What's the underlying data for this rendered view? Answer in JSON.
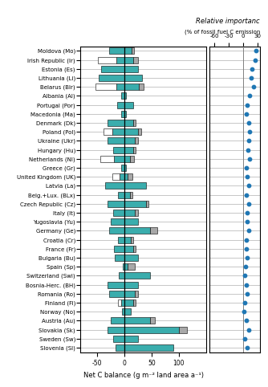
{
  "chart_data": [
    {
      "type": "bar",
      "orientation": "horizontal",
      "stacked": true,
      "grid": true,
      "xlabel": "Net C balance (g m⁻² land area a⁻¹)",
      "categories": [
        "Moldova (Mo)",
        "Irish Republic (Ir)",
        "Estonia (Es)",
        "Lithuania (Li)",
        "Belarus (Blr)",
        "Albania (Al)",
        "Portugal (Por)",
        "Macedonia (Ma)",
        "Denmark (Dk)",
        "Poland (Pol)",
        "Ukraine (Ukr)",
        "Hungary (Hu)",
        "Netherlands (Nl)",
        "Greece (Gr)",
        "United Kingdom (UK)",
        "Latvia (La)",
        "Belg.+Lux. (BLx)",
        "Czech Republic (Cz)",
        "Italy (It)",
        "Yugoslavia (Yu)",
        "Germany (Ge)",
        "Croatia (Cr)",
        "France (Fr)",
        "Bulgaria (Bu)",
        "Spain (Sp)",
        "Switzerland (Swi)",
        "Bosnia-Herc. (BH)",
        "Romania (Ro)",
        "Finland (Fi)",
        "Norway (No)",
        "Austria (Au)",
        "Slovakia (Sk)",
        "Sweden (Sw)",
        "Slovenia (Sl)"
      ],
      "series": [
        {
          "color": "#3aadad",
          "values": [
            -28,
            -14,
            -42,
            -47,
            -14,
            -5,
            -13,
            -5,
            -30,
            -22,
            -30,
            -20,
            -18,
            -5,
            -9,
            -35,
            -12,
            -30,
            -20,
            -25,
            -28,
            -12,
            -18,
            -17,
            -3,
            -10,
            -30,
            -28,
            -6,
            -4,
            -25,
            -30,
            -20,
            -15
          ]
        },
        {
          "color": "white",
          "values": [
            0,
            -34,
            0,
            0,
            -38,
            0,
            0,
            0,
            0,
            -16,
            0,
            0,
            -26,
            0,
            -12,
            0,
            0,
            0,
            0,
            0,
            0,
            0,
            0,
            0,
            0,
            0,
            0,
            0,
            -5,
            0,
            0,
            0,
            0,
            0
          ]
        },
        {
          "color": "#3aadad",
          "values": [
            13,
            17,
            26,
            33,
            27,
            4,
            16,
            4,
            16,
            26,
            20,
            16,
            10,
            4,
            7,
            40,
            10,
            40,
            20,
            25,
            48,
            12,
            16,
            25,
            7,
            48,
            25,
            20,
            16,
            12,
            48,
            100,
            25,
            90
          ]
        },
        {
          "color": "#a8a8a8",
          "values": [
            5,
            8,
            0,
            0,
            8,
            0,
            0,
            0,
            5,
            5,
            5,
            5,
            8,
            0,
            8,
            0,
            5,
            5,
            5,
            0,
            13,
            5,
            5,
            0,
            13,
            0,
            0,
            5,
            5,
            0,
            8,
            15,
            0,
            0
          ]
        }
      ],
      "xlim": [
        -80,
        150
      ],
      "xticks": [
        -50,
        0,
        50,
        100
      ]
    },
    {
      "type": "scatter",
      "orientation": "horizontal",
      "grid": true,
      "tick_labels": "x",
      "marker": "o",
      "title": "Relative importanc",
      "subtitle": "(% of fossil fuel C emission",
      "categories": [
        "Moldova (Mo)",
        "Irish Republic (Ir)",
        "Estonia (Es)",
        "Lithuania (Li)",
        "Belarus (Blr)",
        "Albania (Al)",
        "Portugal (Por)",
        "Macedonia (Ma)",
        "Denmark (Dk)",
        "Poland (Pol)",
        "Ukraine (Ukr)",
        "Hungary (Hu)",
        "Netherlands (Nl)",
        "Greece (Gr)",
        "United Kingdom (UK)",
        "Latvia (La)",
        "Belg.+Lux. (BLx)",
        "Czech Republic (Cz)",
        "Italy (It)",
        "Yugoslavia (Yu)",
        "Germany (Ge)",
        "Croatia (Cr)",
        "France (Fr)",
        "Bulgaria (Bu)",
        "Spain (Sp)",
        "Switzerland (Swi)",
        "Bosnia-Herc. (BH)",
        "Romania (Ro)",
        "Finland (Fi)",
        "Norway (No)",
        "Austria (Au)",
        "Slovakia (Sk)",
        "Sweden (Sw)",
        "Slovenia (Sl)"
      ],
      "values": [
        27,
        25,
        19,
        17,
        21,
        14,
        9,
        7,
        11,
        13,
        12,
        10,
        13,
        6,
        9,
        11,
        7,
        11,
        9,
        9,
        11,
        7,
        7,
        8,
        5,
        4,
        7,
        8,
        3,
        2,
        7,
        11,
        3,
        8
      ],
      "xlim": [
        -70,
        35
      ],
      "xticks": [
        -60,
        -30,
        0,
        30
      ]
    }
  ]
}
